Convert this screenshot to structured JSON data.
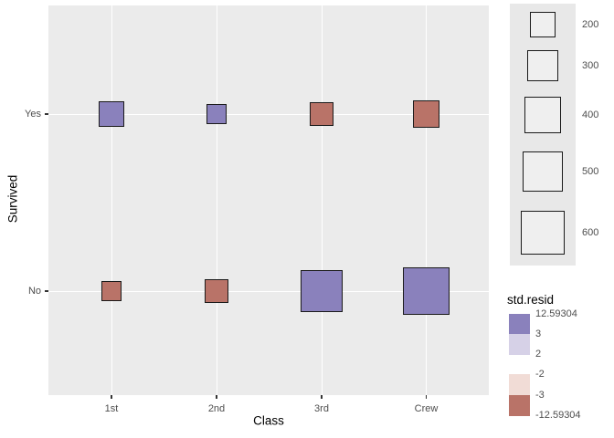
{
  "axes": {
    "x": {
      "title": "Class",
      "categories": [
        "1st",
        "2nd",
        "3rd",
        "Crew"
      ]
    },
    "y": {
      "title": "Survived",
      "categories": [
        "Yes",
        "No"
      ]
    }
  },
  "size_legend": {
    "values": [
      "200",
      "300",
      "400",
      "500",
      "600"
    ]
  },
  "color_legend": {
    "title": "std.resid",
    "labels": [
      "12.59304",
      "3",
      "2",
      "-2",
      "-3",
      "-12.59304"
    ],
    "block_colors": [
      "#8A81BC",
      "#D6D1E7",
      "",
      "#F1DCD6",
      "#B97368"
    ]
  },
  "colors": {
    "panel_bg": "#EBEBEB",
    "grid": "#FFFFFF",
    "positive_fill": "#8A81BC",
    "negative_fill": "#B97368",
    "positive_light": "#D6D1E7",
    "negative_light": "#F1DCD6",
    "legend_strip_bg": "#E8E8E8",
    "legend_key_fill": "#EFEFEF",
    "square_border": "#1A1A1A",
    "tick_label": "#4D4D4D",
    "title_text": "#000000"
  },
  "chart_data": {
    "type": "scatter",
    "title": "",
    "xlabel": "Class",
    "ylabel": "Survived",
    "x_categories": [
      "1st",
      "2nd",
      "3rd",
      "Crew"
    ],
    "y_categories": [
      "Yes",
      "No"
    ],
    "size_encoding": "square side px = 2 * sqrt(n)",
    "fill_encoding": "sign of standardized Pearson residual",
    "cells": [
      {
        "class": "1st",
        "survived": "Yes",
        "n": 203,
        "residual_sign": "positive"
      },
      {
        "class": "2nd",
        "survived": "Yes",
        "n": 118,
        "residual_sign": "positive"
      },
      {
        "class": "3rd",
        "survived": "Yes",
        "n": 178,
        "residual_sign": "negative"
      },
      {
        "class": "Crew",
        "survived": "Yes",
        "n": 212,
        "residual_sign": "negative"
      },
      {
        "class": "1st",
        "survived": "No",
        "n": 122,
        "residual_sign": "negative"
      },
      {
        "class": "2nd",
        "survived": "No",
        "n": 167,
        "residual_sign": "negative"
      },
      {
        "class": "3rd",
        "survived": "No",
        "n": 528,
        "residual_sign": "positive"
      },
      {
        "class": "Crew",
        "survived": "No",
        "n": 673,
        "residual_sign": "positive"
      }
    ],
    "size_legend_values": [
      200,
      300,
      400,
      500,
      600
    ],
    "residual_breaks": [
      12.59304,
      3,
      2,
      -2,
      -3,
      -12.59304
    ],
    "legend_position": "right",
    "grid": "major-white-on-gray"
  }
}
